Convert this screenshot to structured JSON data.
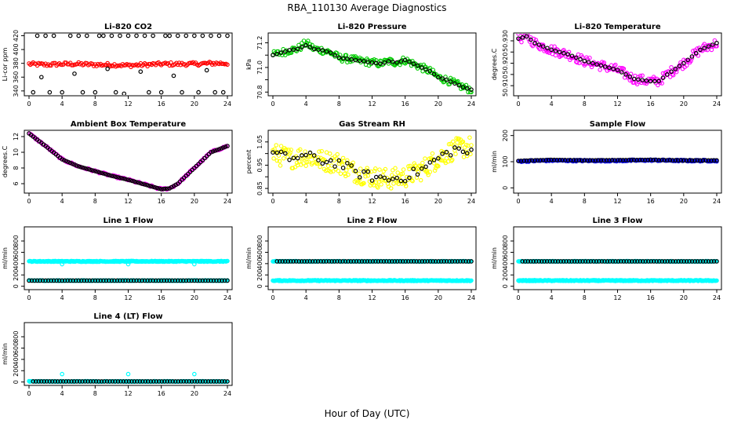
{
  "page_title": "RBA_110130  Average Diagnostics",
  "xlabel": "Hour of Day (UTC)",
  "x_ticks": [
    0,
    4,
    8,
    12,
    16,
    20,
    24
  ],
  "chart_data": [
    {
      "type": "scatter",
      "title": "Li-820 CO2",
      "ylabel": "Li-cor ppm",
      "xlim": [
        0,
        24
      ],
      "ylim": [
        333,
        424
      ],
      "yticks": [
        340,
        360,
        380,
        400,
        420
      ],
      "grid": false,
      "series": [
        {
          "color": "#ff0000",
          "kind": "band",
          "x": [
            0,
            2,
            4,
            6,
            8,
            10,
            12,
            14,
            16,
            18,
            20,
            22,
            24
          ],
          "values": [
            379,
            378,
            379,
            379,
            378,
            378,
            377,
            378,
            379,
            379,
            379,
            380,
            380
          ],
          "spread": 2.5,
          "density": 6
        },
        {
          "color": "#000000",
          "kind": "points",
          "x": [
            1,
            2,
            3,
            5,
            6,
            7,
            8.5,
            9,
            10,
            11,
            12,
            13,
            14,
            15,
            16.5,
            17,
            18,
            19,
            20,
            21,
            22,
            23,
            24,
            0.5,
            2.5,
            4,
            6.5,
            8,
            10.5,
            11.5,
            14.5,
            16,
            18.5,
            20.5,
            22.5,
            23.5,
            1.5,
            5.5,
            9.5,
            13.5,
            17.5,
            21.5
          ],
          "values": [
            420,
            420,
            420,
            420,
            420,
            420,
            420,
            420,
            420,
            420,
            420,
            420,
            420,
            420,
            420,
            420,
            420,
            420,
            420,
            420,
            420,
            420,
            420,
            338,
            338,
            338,
            338,
            338,
            338,
            336,
            338,
            338,
            338,
            338,
            338,
            338,
            360,
            365,
            372,
            368,
            362,
            370
          ]
        }
      ]
    },
    {
      "type": "scatter",
      "title": "Li-820 Pressure",
      "ylabel": "kPa",
      "xlim": [
        0,
        24
      ],
      "ylim": [
        70.77,
        71.28
      ],
      "yticks": [
        70.8,
        70.9,
        71.0,
        71.1,
        71.2
      ],
      "yticklabels": [
        "70.8",
        "",
        "71.0",
        "",
        "71.2"
      ],
      "grid": false,
      "series": [
        {
          "color": "#00cc00",
          "kind": "band",
          "x": [
            0,
            1,
            2,
            3,
            4,
            5,
            6,
            7,
            8,
            9,
            10,
            11,
            12,
            13,
            14,
            15,
            16,
            17,
            18,
            19,
            20,
            21,
            22,
            23,
            24
          ],
          "values": [
            71.1,
            71.12,
            71.14,
            71.15,
            71.2,
            71.15,
            71.14,
            71.12,
            71.08,
            71.07,
            71.06,
            71.05,
            71.04,
            71.03,
            71.05,
            71.04,
            71.06,
            71.03,
            71.0,
            70.97,
            70.92,
            70.9,
            70.87,
            70.84,
            70.82
          ],
          "spread": 0.03,
          "density": 8
        },
        {
          "color": "#000000",
          "kind": "line_points",
          "x": [
            0,
            1,
            2,
            3,
            4,
            5,
            6,
            7,
            8,
            9,
            10,
            11,
            12,
            13,
            14,
            15,
            16,
            17,
            18,
            19,
            20,
            21,
            22,
            23,
            24
          ],
          "values": [
            71.1,
            71.12,
            71.14,
            71.15,
            71.18,
            71.15,
            71.14,
            71.12,
            71.08,
            71.07,
            71.06,
            71.05,
            71.04,
            71.03,
            71.05,
            71.04,
            71.06,
            71.03,
            71.0,
            70.97,
            70.92,
            70.9,
            70.87,
            70.84,
            70.82
          ],
          "density": 2
        }
      ]
    },
    {
      "type": "scatter",
      "title": "Li-820 Temperature",
      "ylabel": "degrees.C",
      "xlim": [
        0,
        24
      ],
      "ylim": [
        50.9055,
        50.9335
      ],
      "yticks": [
        50.91,
        50.915,
        50.92,
        50.925,
        50.93
      ],
      "yticklabels": [
        "50.910",
        "",
        "50.920",
        "",
        "50.930"
      ],
      "grid": false,
      "series": [
        {
          "color": "#ff00ff",
          "kind": "band",
          "x": [
            0,
            1,
            2,
            4,
            6,
            8,
            10,
            12,
            14,
            16,
            17,
            18,
            20,
            22,
            24
          ],
          "values": [
            50.931,
            50.932,
            50.929,
            50.926,
            50.924,
            50.921,
            50.919,
            50.917,
            50.913,
            50.912,
            50.912,
            50.915,
            50.92,
            50.926,
            50.929
          ],
          "spread": 0.0022,
          "density": 8
        },
        {
          "color": "#000000",
          "kind": "line_points",
          "x": [
            0,
            1,
            2,
            4,
            6,
            8,
            10,
            12,
            14,
            16,
            17,
            18,
            20,
            22,
            24
          ],
          "values": [
            50.931,
            50.932,
            50.929,
            50.926,
            50.924,
            50.921,
            50.919,
            50.917,
            50.913,
            50.912,
            50.912,
            50.915,
            50.92,
            50.926,
            50.929
          ],
          "density": 2
        }
      ]
    },
    {
      "type": "scatter",
      "title": "Ambient Box Temperature",
      "ylabel": "degrees.C",
      "xlim": [
        0,
        24
      ],
      "ylim": [
        4.8,
        12.8
      ],
      "yticks": [
        6,
        8,
        10,
        12
      ],
      "grid": false,
      "series": [
        {
          "color": "#ff00ff",
          "kind": "band",
          "x": [
            0,
            2,
            4,
            6,
            8,
            10,
            12,
            14,
            16,
            17,
            18,
            20,
            22,
            24
          ],
          "values": [
            12.4,
            10.8,
            9.1,
            8.2,
            7.6,
            7.0,
            6.5,
            5.9,
            5.3,
            5.4,
            6.0,
            8.0,
            10.0,
            10.8
          ],
          "spread": 0.12,
          "density": 6
        },
        {
          "color": "#000000",
          "kind": "line_points",
          "x": [
            0,
            2,
            4,
            6,
            8,
            10,
            12,
            14,
            16,
            17,
            18,
            20,
            22,
            24
          ],
          "values": [
            12.4,
            10.8,
            9.1,
            8.2,
            7.6,
            7.0,
            6.5,
            5.9,
            5.3,
            5.4,
            6.0,
            8.0,
            10.0,
            10.8
          ],
          "density": 4
        }
      ]
    },
    {
      "type": "scatter",
      "title": "Gas Stream RH",
      "ylabel": "percent",
      "xlim": [
        0,
        24
      ],
      "ylim": [
        0.83,
        1.1
      ],
      "yticks": [
        0.85,
        0.9,
        0.95,
        1.0,
        1.05
      ],
      "yticklabels": [
        "0.85",
        "",
        "0.95",
        "",
        "1.05"
      ],
      "grid": false,
      "series": [
        {
          "color": "#ffff00",
          "kind": "band",
          "x": [
            0,
            2,
            4,
            6,
            8,
            10,
            12,
            14,
            16,
            18,
            20,
            22,
            24
          ],
          "values": [
            1.0,
            0.98,
            0.99,
            0.97,
            0.96,
            0.92,
            0.9,
            0.89,
            0.9,
            0.93,
            0.98,
            1.02,
            1.03
          ],
          "spread": 0.045,
          "density": 10
        },
        {
          "color": "#000000",
          "kind": "line_points",
          "x": [
            0,
            2,
            4,
            6,
            8,
            10,
            12,
            14,
            16,
            18,
            20,
            22,
            24
          ],
          "values": [
            1.0,
            0.98,
            0.99,
            0.97,
            0.96,
            0.92,
            0.9,
            0.89,
            0.9,
            0.93,
            0.98,
            1.02,
            1.0
          ],
          "density": 2,
          "jitter": 0.02
        }
      ]
    },
    {
      "type": "scatter",
      "title": "Sample Flow",
      "ylabel": "ml/min",
      "xlim": [
        0,
        24
      ],
      "ylim": [
        -20,
        220
      ],
      "yticks": [
        0,
        100,
        200
      ],
      "grid": false,
      "series": [
        {
          "color": "#0000ff",
          "kind": "band",
          "x": [
            0,
            4,
            8,
            12,
            16,
            20,
            24
          ],
          "values": [
            102,
            105,
            104,
            104,
            106,
            104,
            104
          ],
          "spread": 3,
          "density": 8
        },
        {
          "color": "#000000",
          "kind": "line_points",
          "x": [
            0,
            4,
            8,
            12,
            16,
            20,
            24
          ],
          "values": [
            103,
            107,
            105,
            106,
            107,
            105,
            105
          ],
          "density": 3
        }
      ]
    },
    {
      "type": "scatter",
      "title": "Line 1 Flow",
      "ylabel": "ml/min",
      "xlim": [
        0,
        24
      ],
      "ylim": [
        -60,
        1050
      ],
      "yticks": [
        0,
        200,
        400,
        600,
        800
      ],
      "grid": false,
      "series": [
        {
          "color": "#00ffff",
          "kind": "band",
          "x": [
            0,
            24
          ],
          "values": [
            440,
            440
          ],
          "spread": 8,
          "density": 12
        },
        {
          "color": "#00ffff",
          "kind": "band",
          "x": [
            0,
            24
          ],
          "values": [
            100,
            100
          ],
          "spread": 6,
          "density": 12
        },
        {
          "color": "#000000",
          "kind": "line_points",
          "x": [
            0,
            24
          ],
          "values": [
            100,
            100
          ],
          "density": 3
        },
        {
          "color": "#00ffff",
          "kind": "points",
          "x": [
            4,
            12,
            20
          ],
          "values": [
            390,
            390,
            390
          ]
        }
      ]
    },
    {
      "type": "scatter",
      "title": "Line 2 Flow",
      "ylabel": "ml/min",
      "xlim": [
        0,
        24
      ],
      "ylim": [
        -60,
        1050
      ],
      "yticks": [
        0,
        200,
        400,
        600,
        800
      ],
      "grid": false,
      "series": [
        {
          "color": "#00ffff",
          "kind": "band",
          "x": [
            0,
            24
          ],
          "values": [
            100,
            100
          ],
          "spread": 8,
          "density": 12
        },
        {
          "color": "#00ffff",
          "kind": "band",
          "x": [
            0,
            24
          ],
          "values": [
            440,
            440
          ],
          "spread": 6,
          "density": 12
        },
        {
          "color": "#000000",
          "kind": "line_points",
          "x": [
            0.5,
            24
          ],
          "values": [
            440,
            440
          ],
          "density": 3
        }
      ]
    },
    {
      "type": "scatter",
      "title": "Line 3 Flow",
      "ylabel": "ml/min",
      "xlim": [
        0,
        24
      ],
      "ylim": [
        -60,
        1050
      ],
      "yticks": [
        0,
        200,
        400,
        600,
        800
      ],
      "grid": false,
      "series": [
        {
          "color": "#00ffff",
          "kind": "band",
          "x": [
            0,
            24
          ],
          "values": [
            100,
            100
          ],
          "spread": 8,
          "density": 12
        },
        {
          "color": "#00ffff",
          "kind": "band",
          "x": [
            0,
            24
          ],
          "values": [
            440,
            440
          ],
          "spread": 6,
          "density": 12
        },
        {
          "color": "#000000",
          "kind": "line_points",
          "x": [
            0.5,
            24
          ],
          "values": [
            440,
            440
          ],
          "density": 3
        }
      ]
    },
    {
      "type": "scatter",
      "title": "Line 4 (LT) Flow",
      "ylabel": "ml/min",
      "xlim": [
        0,
        24
      ],
      "ylim": [
        -60,
        1050
      ],
      "yticks": [
        0,
        200,
        400,
        600,
        800
      ],
      "grid": false,
      "series": [
        {
          "color": "#00ffff",
          "kind": "band",
          "x": [
            0,
            24
          ],
          "values": [
            10,
            10
          ],
          "spread": 6,
          "density": 12
        },
        {
          "color": "#000000",
          "kind": "line_points",
          "x": [
            0.5,
            24
          ],
          "values": [
            10,
            10
          ],
          "density": 3
        },
        {
          "color": "#00ffff",
          "kind": "points",
          "x": [
            4,
            12,
            20
          ],
          "values": [
            140,
            140,
            140
          ]
        }
      ]
    }
  ]
}
